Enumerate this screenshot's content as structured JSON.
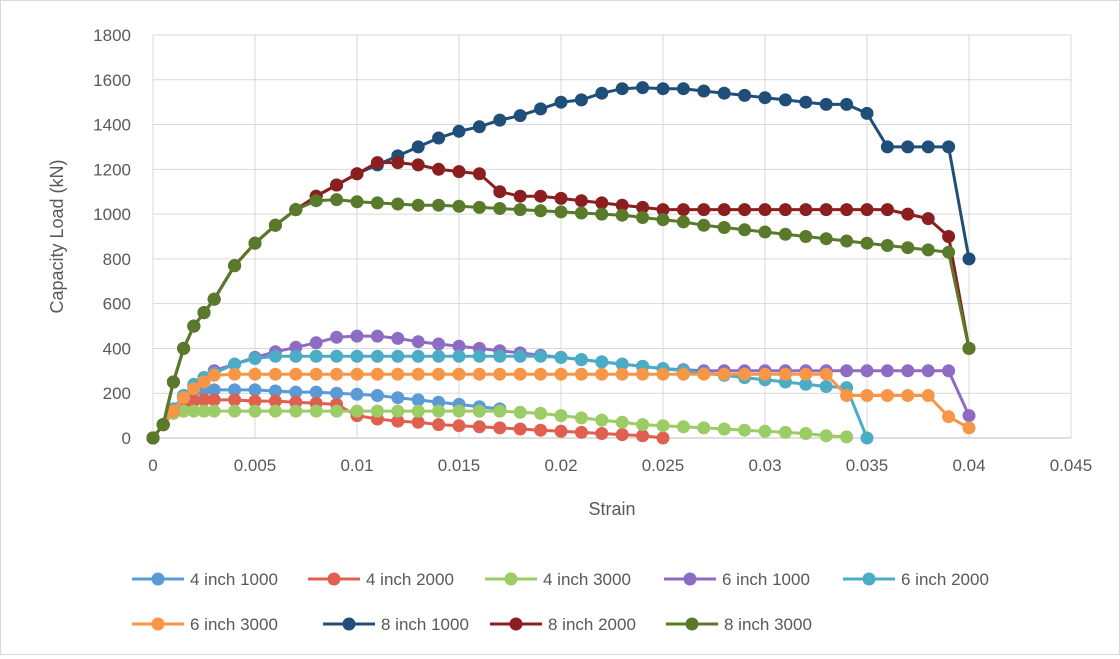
{
  "chart_data": {
    "type": "line",
    "title": "",
    "xlabel": "Strain",
    "ylabel": "Capacity Load (kN)",
    "xlim": [
      0,
      0.045
    ],
    "ylim": [
      0,
      1800
    ],
    "xticks": [
      0,
      0.005,
      0.01,
      0.015,
      0.02,
      0.025,
      0.03,
      0.035,
      0.04,
      0.045
    ],
    "xtick_labels": [
      "0",
      "0.005",
      "0.01",
      "0.015",
      "0.02",
      "0.025",
      "0.03",
      "0.035",
      "0.04",
      "0.045"
    ],
    "yticks": [
      0,
      200,
      400,
      600,
      800,
      1000,
      1200,
      1400,
      1600,
      1800
    ],
    "ytick_labels": [
      "0",
      "200",
      "400",
      "600",
      "800",
      "1000",
      "1200",
      "1400",
      "1600",
      "1800"
    ],
    "grid": true,
    "legend_position": "bottom",
    "series": [
      {
        "name": "4 inch 1000",
        "color": "#5b9bd5",
        "x": [
          0,
          0.0005,
          0.001,
          0.0015,
          0.002,
          0.0025,
          0.003,
          0.004,
          0.005,
          0.006,
          0.007,
          0.008,
          0.009,
          0.01,
          0.011,
          0.012,
          0.013,
          0.014,
          0.015,
          0.016,
          0.017
        ],
        "y": [
          0,
          60,
          130,
          190,
          210,
          215,
          215,
          215,
          215,
          210,
          205,
          205,
          200,
          195,
          190,
          180,
          170,
          160,
          150,
          140,
          130
        ]
      },
      {
        "name": "4 inch 2000",
        "color": "#e0604f",
        "x": [
          0,
          0.0005,
          0.001,
          0.0015,
          0.002,
          0.0025,
          0.003,
          0.004,
          0.005,
          0.006,
          0.007,
          0.008,
          0.009,
          0.01,
          0.011,
          0.012,
          0.013,
          0.014,
          0.015,
          0.016,
          0.017,
          0.018,
          0.019,
          0.02,
          0.021,
          0.022,
          0.023,
          0.024,
          0.025
        ],
        "y": [
          0,
          60,
          120,
          150,
          165,
          170,
          170,
          170,
          165,
          165,
          160,
          155,
          150,
          100,
          85,
          75,
          70,
          60,
          55,
          50,
          45,
          40,
          35,
          30,
          25,
          20,
          15,
          10,
          0
        ]
      },
      {
        "name": "4 inch 3000",
        "color": "#9ccc65",
        "x": [
          0,
          0.0005,
          0.001,
          0.0015,
          0.002,
          0.0025,
          0.003,
          0.004,
          0.005,
          0.006,
          0.007,
          0.008,
          0.009,
          0.01,
          0.011,
          0.012,
          0.013,
          0.014,
          0.015,
          0.016,
          0.017,
          0.018,
          0.019,
          0.02,
          0.021,
          0.022,
          0.023,
          0.024,
          0.025,
          0.026,
          0.027,
          0.028,
          0.029,
          0.03,
          0.031,
          0.032,
          0.033,
          0.034
        ],
        "y": [
          0,
          60,
          110,
          120,
          120,
          120,
          120,
          120,
          120,
          120,
          120,
          120,
          120,
          120,
          120,
          120,
          120,
          120,
          120,
          120,
          120,
          115,
          110,
          100,
          90,
          80,
          70,
          60,
          55,
          50,
          45,
          40,
          35,
          30,
          25,
          20,
          10,
          5
        ]
      },
      {
        "name": "6 inch 1000",
        "color": "#8e6cc3",
        "x": [
          0,
          0.0005,
          0.001,
          0.0015,
          0.002,
          0.0025,
          0.003,
          0.004,
          0.005,
          0.006,
          0.007,
          0.008,
          0.009,
          0.01,
          0.011,
          0.012,
          0.013,
          0.014,
          0.015,
          0.016,
          0.017,
          0.018,
          0.019,
          0.02,
          0.021,
          0.022,
          0.023,
          0.024,
          0.025,
          0.026,
          0.027,
          0.028,
          0.029,
          0.03,
          0.031,
          0.032,
          0.033,
          0.034,
          0.035,
          0.036,
          0.037,
          0.038,
          0.039,
          0.04
        ],
        "y": [
          0,
          60,
          120,
          180,
          230,
          270,
          300,
          330,
          360,
          385,
          405,
          425,
          450,
          455,
          455,
          445,
          430,
          420,
          410,
          400,
          390,
          380,
          370,
          360,
          350,
          340,
          330,
          320,
          310,
          305,
          300,
          300,
          300,
          300,
          300,
          300,
          300,
          300,
          300,
          300,
          300,
          300,
          300,
          100
        ]
      },
      {
        "name": "6 inch 2000",
        "color": "#4bacc6",
        "x": [
          0,
          0.0005,
          0.001,
          0.0015,
          0.002,
          0.0025,
          0.003,
          0.004,
          0.005,
          0.006,
          0.007,
          0.008,
          0.009,
          0.01,
          0.011,
          0.012,
          0.013,
          0.014,
          0.015,
          0.016,
          0.017,
          0.018,
          0.019,
          0.02,
          0.021,
          0.022,
          0.023,
          0.024,
          0.025,
          0.026,
          0.027,
          0.028,
          0.029,
          0.03,
          0.031,
          0.032,
          0.033,
          0.034,
          0.035
        ],
        "y": [
          0,
          60,
          130,
          190,
          240,
          270,
          290,
          330,
          355,
          365,
          365,
          365,
          365,
          365,
          365,
          365,
          365,
          365,
          365,
          365,
          365,
          365,
          365,
          360,
          350,
          340,
          330,
          320,
          310,
          300,
          290,
          280,
          270,
          260,
          250,
          240,
          230,
          225,
          0
        ]
      },
      {
        "name": "6 inch 3000",
        "color": "#f79646",
        "x": [
          0,
          0.0005,
          0.001,
          0.0015,
          0.002,
          0.0025,
          0.003,
          0.004,
          0.005,
          0.006,
          0.007,
          0.008,
          0.009,
          0.01,
          0.011,
          0.012,
          0.013,
          0.014,
          0.015,
          0.016,
          0.017,
          0.018,
          0.019,
          0.02,
          0.021,
          0.022,
          0.023,
          0.024,
          0.025,
          0.026,
          0.027,
          0.028,
          0.029,
          0.03,
          0.031,
          0.032,
          0.033,
          0.034,
          0.035,
          0.036,
          0.037,
          0.038,
          0.039,
          0.04
        ],
        "y": [
          0,
          60,
          120,
          180,
          220,
          250,
          280,
          285,
          285,
          285,
          285,
          285,
          285,
          285,
          285,
          285,
          285,
          285,
          285,
          285,
          285,
          285,
          285,
          285,
          285,
          285,
          285,
          285,
          285,
          285,
          285,
          285,
          285,
          285,
          285,
          285,
          285,
          190,
          190,
          190,
          190,
          190,
          95,
          45
        ]
      },
      {
        "name": "8 inch 1000",
        "color": "#1f4e79",
        "x": [
          0,
          0.0005,
          0.001,
          0.0015,
          0.002,
          0.0025,
          0.003,
          0.004,
          0.005,
          0.006,
          0.007,
          0.008,
          0.009,
          0.01,
          0.011,
          0.012,
          0.013,
          0.014,
          0.015,
          0.016,
          0.017,
          0.018,
          0.019,
          0.02,
          0.021,
          0.022,
          0.023,
          0.024,
          0.025,
          0.026,
          0.027,
          0.028,
          0.029,
          0.03,
          0.031,
          0.032,
          0.033,
          0.034,
          0.035,
          0.036,
          0.037,
          0.038,
          0.039,
          0.04
        ],
        "y": [
          0,
          60,
          250,
          400,
          500,
          560,
          620,
          770,
          870,
          950,
          1020,
          1080,
          1130,
          1180,
          1220,
          1260,
          1300,
          1340,
          1370,
          1390,
          1420,
          1440,
          1470,
          1500,
          1510,
          1540,
          1560,
          1565,
          1560,
          1560,
          1550,
          1540,
          1530,
          1520,
          1510,
          1500,
          1490,
          1490,
          1450,
          1300,
          1300,
          1300,
          1300,
          800
        ]
      },
      {
        "name": "8 inch 2000",
        "color": "#8b1e1e",
        "x": [
          0,
          0.0005,
          0.001,
          0.0015,
          0.002,
          0.0025,
          0.003,
          0.004,
          0.005,
          0.006,
          0.007,
          0.008,
          0.009,
          0.01,
          0.011,
          0.012,
          0.013,
          0.014,
          0.015,
          0.016,
          0.017,
          0.018,
          0.019,
          0.02,
          0.021,
          0.022,
          0.023,
          0.024,
          0.025,
          0.026,
          0.027,
          0.028,
          0.029,
          0.03,
          0.031,
          0.032,
          0.033,
          0.034,
          0.035,
          0.036,
          0.037,
          0.038,
          0.039,
          0.04
        ],
        "y": [
          0,
          60,
          250,
          400,
          500,
          560,
          620,
          770,
          870,
          950,
          1020,
          1080,
          1130,
          1180,
          1230,
          1230,
          1220,
          1200,
          1190,
          1180,
          1100,
          1080,
          1080,
          1070,
          1060,
          1050,
          1040,
          1030,
          1020,
          1020,
          1020,
          1020,
          1020,
          1020,
          1020,
          1020,
          1020,
          1020,
          1020,
          1020,
          1000,
          980,
          900,
          400
        ]
      },
      {
        "name": "8 inch 3000",
        "color": "#5a7a2b",
        "x": [
          0,
          0.0005,
          0.001,
          0.0015,
          0.002,
          0.0025,
          0.003,
          0.004,
          0.005,
          0.006,
          0.007,
          0.008,
          0.009,
          0.01,
          0.011,
          0.012,
          0.013,
          0.014,
          0.015,
          0.016,
          0.017,
          0.018,
          0.019,
          0.02,
          0.021,
          0.022,
          0.023,
          0.024,
          0.025,
          0.026,
          0.027,
          0.028,
          0.029,
          0.03,
          0.031,
          0.032,
          0.033,
          0.034,
          0.035,
          0.036,
          0.037,
          0.038,
          0.039,
          0.04
        ],
        "y": [
          0,
          60,
          250,
          400,
          500,
          560,
          620,
          770,
          870,
          950,
          1020,
          1060,
          1065,
          1055,
          1050,
          1045,
          1040,
          1040,
          1035,
          1030,
          1025,
          1020,
          1015,
          1010,
          1005,
          1000,
          995,
          985,
          975,
          965,
          950,
          940,
          930,
          920,
          910,
          900,
          890,
          880,
          870,
          860,
          850,
          840,
          830,
          400
        ]
      }
    ]
  }
}
